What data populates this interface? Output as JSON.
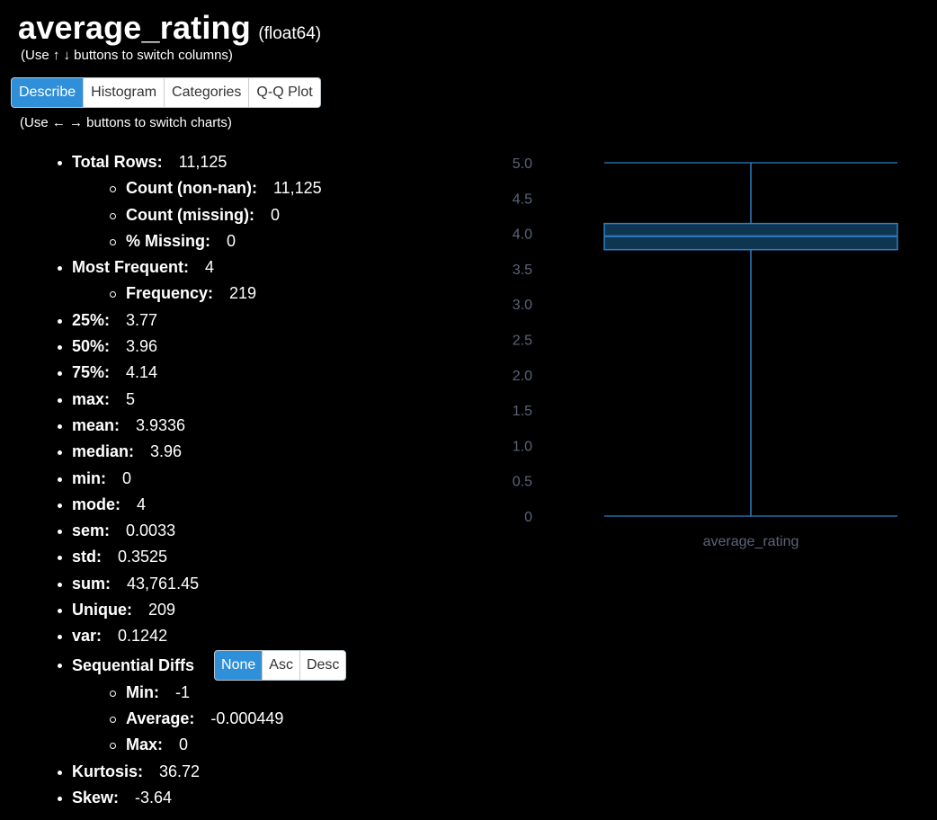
{
  "header": {
    "column_name": "average_rating",
    "dtype": "(float64)",
    "column_hint": "(Use ↑ ↓ buttons to switch columns)",
    "chart_hint": "(Use ← → buttons to switch charts)"
  },
  "tabs": [
    {
      "label": "Describe",
      "active": true
    },
    {
      "label": "Histogram",
      "active": false
    },
    {
      "label": "Categories",
      "active": false
    },
    {
      "label": "Q-Q Plot",
      "active": false
    }
  ],
  "stats": {
    "total_rows": {
      "label": "Total Rows:",
      "value": "11,125"
    },
    "count_nonnan": {
      "label": "Count (non-nan):",
      "value": "11,125"
    },
    "count_missing": {
      "label": "Count (missing):",
      "value": "0"
    },
    "pct_missing": {
      "label": "% Missing:",
      "value": "0"
    },
    "most_frequent": {
      "label": "Most Frequent:",
      "value": "4"
    },
    "frequency": {
      "label": "Frequency:",
      "value": "219"
    },
    "p25": {
      "label": "25%:",
      "value": "3.77"
    },
    "p50": {
      "label": "50%:",
      "value": "3.96"
    },
    "p75": {
      "label": "75%:",
      "value": "4.14"
    },
    "max": {
      "label": "max:",
      "value": "5"
    },
    "mean": {
      "label": "mean:",
      "value": "3.9336"
    },
    "median": {
      "label": "median:",
      "value": "3.96"
    },
    "min": {
      "label": "min:",
      "value": "0"
    },
    "mode": {
      "label": "mode:",
      "value": "4"
    },
    "sem": {
      "label": "sem:",
      "value": "0.0033"
    },
    "std": {
      "label": "std:",
      "value": "0.3525"
    },
    "sum": {
      "label": "sum:",
      "value": "43,761.45"
    },
    "unique": {
      "label": "Unique:",
      "value": "209"
    },
    "var": {
      "label": "var:",
      "value": "0.1242"
    },
    "sequential_diffs": {
      "label": "Sequential Diffs"
    },
    "diff_min": {
      "label": "Min:",
      "value": "-1"
    },
    "diff_avg": {
      "label": "Average:",
      "value": "-0.000449"
    },
    "diff_max": {
      "label": "Max:",
      "value": "0"
    },
    "kurtosis": {
      "label": "Kurtosis:",
      "value": "36.72"
    },
    "skew": {
      "label": "Skew:",
      "value": "-3.64"
    }
  },
  "diff_buttons": [
    {
      "label": "None",
      "active": true
    },
    {
      "label": "Asc",
      "active": false
    },
    {
      "label": "Desc",
      "active": false
    }
  ],
  "colors": {
    "accent": "#2f8fd8",
    "box_stroke": "#2e7fc4",
    "axis_text": "#5a6478"
  },
  "chart_data": {
    "type": "box",
    "category": "average_rating",
    "xlabel": "average_rating",
    "ylim": [
      0,
      5
    ],
    "yticks": [
      "0",
      "0.5",
      "1.0",
      "1.5",
      "2.0",
      "2.5",
      "3.0",
      "3.5",
      "4.0",
      "4.5",
      "5.0"
    ],
    "min": 0,
    "q1": 3.77,
    "median": 3.96,
    "q3": 4.14,
    "max": 5
  }
}
